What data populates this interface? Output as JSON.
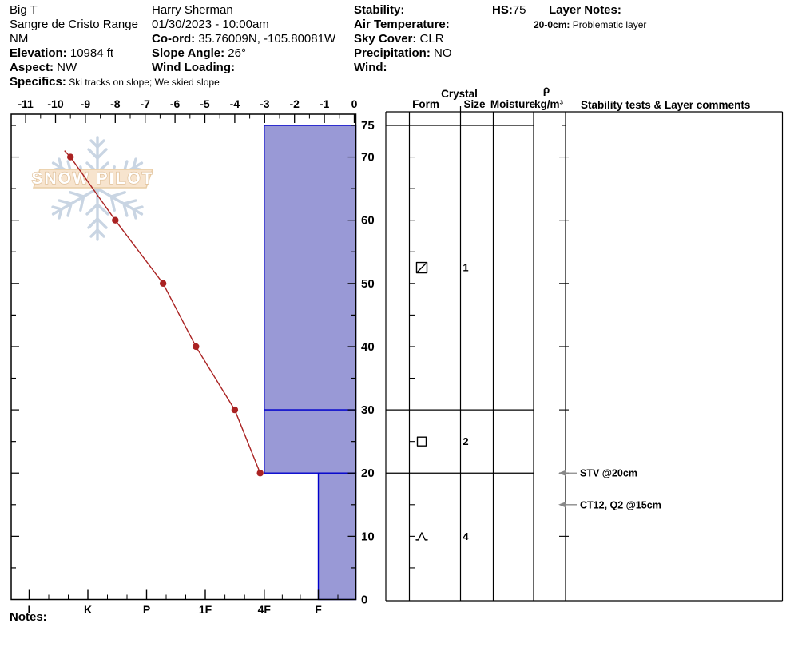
{
  "header": {
    "columns": [
      {
        "name": "site-info",
        "rows": [
          {
            "b": "",
            "t": "Big T"
          },
          {
            "b": "",
            "t": "Sangre de Cristo Range"
          },
          {
            "b": "",
            "t": "NM"
          },
          {
            "b": "Elevation:",
            "t": " 10984 ft"
          },
          {
            "b": "Aspect:",
            "t": " NW"
          },
          {
            "b": "Specifics:",
            "t": " Ski tracks on slope; We skied slope",
            "ts": true
          }
        ]
      },
      {
        "name": "observer-info",
        "rows": [
          {
            "b": "",
            "t": "Harry Sherman"
          },
          {
            "b": "",
            "t": "01/30/2023 - 10:00am"
          },
          {
            "b": "Co-ord:",
            "t": " 35.76009N, -105.80081W"
          },
          {
            "b": "Slope Angle:",
            "t": " 26°"
          },
          {
            "b": "Wind Loading:",
            "t": ""
          }
        ]
      },
      {
        "name": "weather-info",
        "rows": [
          {
            "b": "Stability:",
            "t": ""
          },
          {
            "b": "Air Temperature:",
            "t": ""
          },
          {
            "b": "Sky Cover:",
            "t": " CLR"
          },
          {
            "b": "Precipitation:",
            "t": " NO"
          },
          {
            "b": "Wind:",
            "t": ""
          }
        ]
      },
      {
        "name": "hs-info",
        "rows": [
          {
            "b": "HS:",
            "t": "75"
          }
        ]
      },
      {
        "name": "layer-notes",
        "rows": [
          {
            "b": "Layer Notes:",
            "t": ""
          },
          {
            "b": "20-0cm:",
            "t": " Problematic layer",
            "bs": true,
            "ts": true
          }
        ]
      }
    ]
  },
  "watermark": {
    "text": "SNOW PILOT"
  },
  "table": {
    "headers": {
      "crystal": "Crystal",
      "form": "Form",
      "size": "Size",
      "moisture": "Moisture",
      "rho": "ρ",
      "rho_units": "kg/m³",
      "comments": "Stability tests & Layer comments"
    }
  },
  "notes_label": "Notes:",
  "chart_data": {
    "type": "snow-profile",
    "hs_cm": 75,
    "depth_axis": {
      "unit": "cm",
      "max": 75,
      "labels": [
        75,
        70,
        60,
        50,
        40,
        30,
        20,
        10,
        0
      ],
      "minor_step_cm": 5
    },
    "temp_axis": {
      "unit": "°C",
      "major_ticks": [
        -11,
        -10,
        -9,
        -8,
        -7,
        -6,
        -5,
        -4,
        -3,
        -2,
        -1,
        0
      ],
      "minor_step": 0.5
    },
    "hardness_axis": {
      "categories": [
        "I",
        "K",
        "P",
        "1F",
        "4F",
        "F"
      ]
    },
    "temperature_profile": {
      "stub": {
        "depth_cm": 71,
        "temp_c": -9.7
      },
      "points": [
        {
          "depth_cm": 70,
          "temp_c": -9.5
        },
        {
          "depth_cm": 60,
          "temp_c": -8.0
        },
        {
          "depth_cm": 50,
          "temp_c": -6.4
        },
        {
          "depth_cm": 40,
          "temp_c": -5.3
        },
        {
          "depth_cm": 30,
          "temp_c": -4.0
        },
        {
          "depth_cm": 20,
          "temp_c": -3.15
        }
      ]
    },
    "layers": [
      {
        "top_cm": 75,
        "bottom_cm": 30,
        "hardness": "4F",
        "grain_form_symbol": "square-slash",
        "grain_size_mm": "1",
        "moisture": "",
        "density": ""
      },
      {
        "top_cm": 30,
        "bottom_cm": 20,
        "hardness": "4F",
        "grain_form_symbol": "square",
        "grain_size_mm": "2",
        "moisture": "",
        "density": ""
      },
      {
        "top_cm": 20,
        "bottom_cm": 0,
        "hardness": "F",
        "grain_form_symbol": "cup",
        "grain_size_mm": "4",
        "moisture": "",
        "density": ""
      }
    ],
    "stability_tests": [
      {
        "depth_cm": 20,
        "text": "STV @20cm"
      },
      {
        "depth_cm": 15,
        "text": "CT12, Q2 @15cm"
      }
    ],
    "colors": {
      "layer_fill": "#9999d6",
      "layer_border": "#0000cc",
      "temp_line": "#aa2222",
      "annotation_arrow": "#888888",
      "watermark_flake": "#c9d5e3",
      "watermark_band_fill": "#f7e4ce",
      "watermark_band_border": "#e9cda6",
      "watermark_text_stroke": "#ddbb92"
    }
  }
}
